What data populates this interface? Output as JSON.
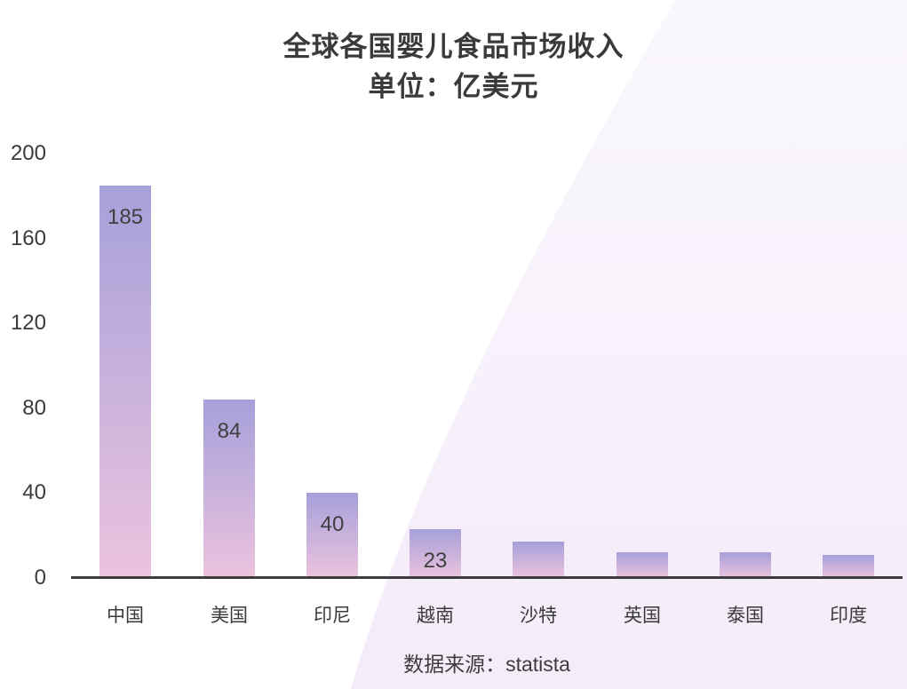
{
  "chart_data": {
    "type": "bar",
    "title": "全球各国婴儿食品市场收入",
    "subtitle": "单位：亿美元",
    "categories": [
      "中国",
      "美国",
      "印尼",
      "越南",
      "沙特",
      "英国",
      "泰国",
      "印度"
    ],
    "values": [
      185,
      84,
      40,
      23,
      17,
      12,
      12,
      11
    ],
    "data_labels": [
      "185",
      "84",
      "40",
      "23",
      "",
      "",
      "",
      ""
    ],
    "yticks": [
      0,
      40,
      80,
      120,
      160,
      200
    ],
    "ylim": [
      0,
      200
    ],
    "xlabel": "",
    "ylabel": "",
    "grid": false,
    "legend": false,
    "source": "数据来源：statista"
  },
  "colors": {
    "bar_gradient_top": "#a6a0da",
    "bar_gradient_bottom": "#ecc3de",
    "axis": "#3c3c3c",
    "text": "#3a3a3a",
    "background_wash_top": "#faf7fd",
    "background_wash_bottom": "#f4ecf9"
  }
}
